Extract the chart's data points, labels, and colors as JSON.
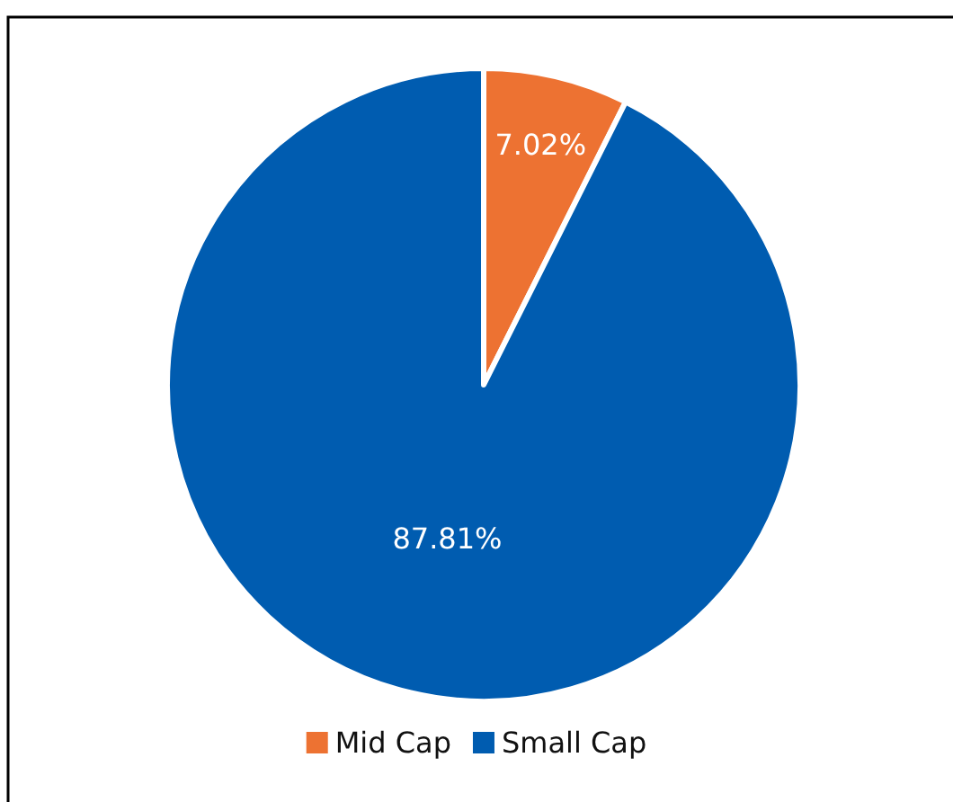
{
  "chart_data": {
    "type": "pie",
    "categories": [
      "Mid Cap",
      "Small Cap"
    ],
    "values": [
      7.02,
      87.81
    ],
    "colors": [
      "#ed7232",
      "#005cb0"
    ],
    "value_labels": [
      "7.02%",
      "87.81%"
    ],
    "legend": "bottom"
  }
}
